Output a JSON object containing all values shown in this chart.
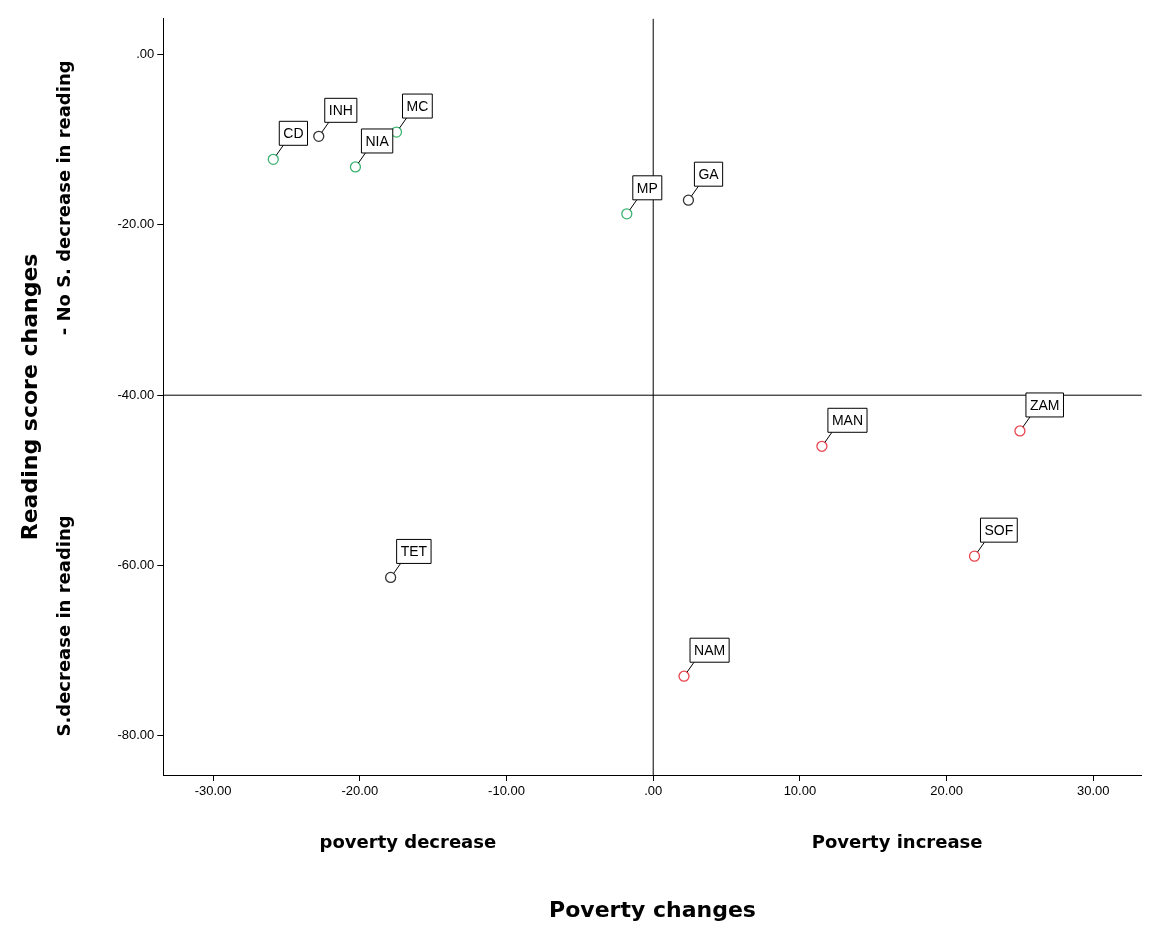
{
  "chart_data": {
    "type": "scatter",
    "xlabel": "Poverty changes",
    "ylabel": "Reading score changes",
    "annotations": [
      "poverty decrease",
      "Poverty increase",
      "S.decrease in reading",
      "- No S. decrease in reading",
      {
        "text": "INH",
        "x": -22.8,
        "y": -9.6
      },
      {
        "text": "MC",
        "x": -17.5,
        "y": -9.1
      },
      {
        "text": "CD",
        "x": -25.9,
        "y": -12.3
      },
      {
        "text": "NIA",
        "x": -20.3,
        "y": -13.2
      },
      {
        "text": "MP",
        "x": -1.8,
        "y": -18.7
      },
      {
        "text": "GA",
        "x": 2.4,
        "y": -17.1
      },
      {
        "text": "MAN",
        "x": 11.5,
        "y": -46
      },
      {
        "text": "ZAM",
        "x": 25,
        "y": -44.2
      },
      {
        "text": "TET",
        "x": -17.9,
        "y": -61.4
      },
      {
        "text": "SOF",
        "x": 21.9,
        "y": -58.9
      },
      {
        "text": "NAM",
        "x": 2.1,
        "y": -73
      }
    ],
    "series": [
      {
        "color": "#333333",
        "x": [
          -22.8,
          2.4,
          -17.9
        ],
        "values": [
          -9.6,
          -17.1,
          -61.4
        ]
      },
      {
        "color": "#3cb371",
        "x": [
          -17.5,
          -25.9,
          -20.3,
          -1.8
        ],
        "values": [
          -9.1,
          -12.3,
          -13.2,
          -18.7
        ]
      },
      {
        "color": "#e8454f",
        "x": [
          11.5,
          25,
          21.9,
          2.1
        ],
        "values": [
          -46,
          -44.2,
          -58.9,
          -73
        ]
      }
    ],
    "xlim": [
      -33.4,
      33.3
    ],
    "ylim": [
      -84.6,
      4.2
    ],
    "xticks": [
      {
        "value": -30,
        "label": "-30.00"
      },
      {
        "value": -20,
        "label": "-20.00"
      },
      {
        "value": -10,
        "label": "-10.00"
      },
      {
        "value": 0,
        "label": ".00"
      },
      {
        "value": 10,
        "label": "10.00"
      },
      {
        "value": 20,
        "label": "20.00"
      },
      {
        "value": 30,
        "label": "30.00"
      }
    ],
    "yticks": [
      {
        "value": 0,
        "label": ".00"
      },
      {
        "value": -20,
        "label": "-20.00"
      },
      {
        "value": -40,
        "label": "-40.00"
      },
      {
        "value": -60,
        "label": "-60.00"
      },
      {
        "value": -80,
        "label": "-80.00"
      }
    ],
    "ref_lines": [
      {
        "axis": "x",
        "value": 0,
        "color": "#000000"
      },
      {
        "axis": "y",
        "value": -40,
        "color": "#000000"
      }
    ],
    "grid": false,
    "legend": false,
    "marker": "circle"
  }
}
